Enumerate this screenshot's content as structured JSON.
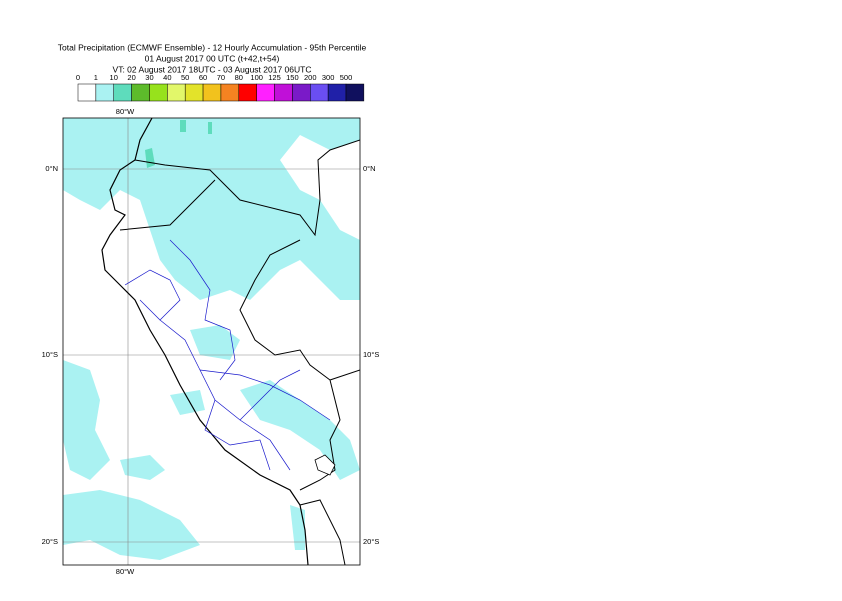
{
  "header": {
    "title": "Total Precipitation (ECMWF Ensemble) - 12 Hourly Accumulation - 95th Percentile",
    "base": "01 August 2017 00 UTC (t+42,t+54)",
    "valid": "VT: 02 August 2017 18UTC - 03 August 2017 06UTC"
  },
  "legend": {
    "thresholds": [
      0,
      1,
      10,
      20,
      30,
      40,
      50,
      60,
      70,
      80,
      100,
      125,
      150,
      200,
      300,
      500
    ],
    "colors": [
      "#ffffff",
      "#aaf2f2",
      "#5edcbc",
      "#5dbb2b",
      "#97e21c",
      "#e2f76a",
      "#e3e32a",
      "#f2c21d",
      "#f58321",
      "#ff0000",
      "#ff20ff",
      "#c010d8",
      "#7a1ac8",
      "#6a4ef2",
      "#2020a8",
      "#10105e"
    ]
  },
  "map": {
    "lon_label": "80°W",
    "lat_labels": [
      "0°N",
      "10°S",
      "20°S"
    ]
  }
}
